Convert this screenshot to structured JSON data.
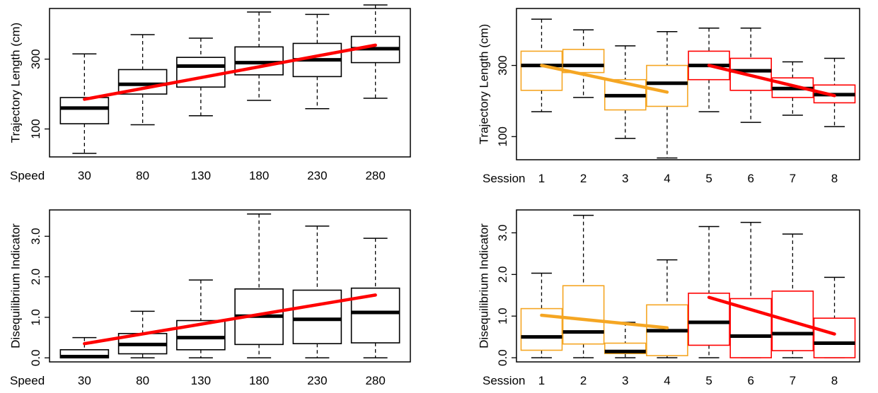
{
  "chart_data": [
    {
      "type": "box",
      "ylabel": "Trajectory Length (cm)",
      "xname": "Speed",
      "categories": [
        "30",
        "80",
        "130",
        "180",
        "230",
        "280"
      ],
      "ylim": [
        20,
        445
      ],
      "yticks": [
        100,
        300
      ],
      "boxes": [
        {
          "min": 30,
          "q1": 115,
          "median": 160,
          "q3": 190,
          "max": 315
        },
        {
          "min": 112,
          "q1": 200,
          "median": 228,
          "q3": 270,
          "max": 370
        },
        {
          "min": 138,
          "q1": 220,
          "median": 280,
          "q3": 305,
          "max": 360
        },
        {
          "min": 182,
          "q1": 255,
          "median": 290,
          "q3": 335,
          "max": 435
        },
        {
          "min": 158,
          "q1": 250,
          "median": 298,
          "q3": 345,
          "max": 428
        },
        {
          "min": 188,
          "q1": 290,
          "median": 330,
          "q3": 365,
          "max": 455
        }
      ],
      "box_colors": [
        "#000000",
        "#000000",
        "#000000",
        "#000000",
        "#000000",
        "#000000"
      ],
      "trend_lines": [
        {
          "x_start": 1,
          "x_end": 6,
          "y_start": 185,
          "y_end": 340,
          "color": "#ff0000"
        }
      ]
    },
    {
      "type": "box",
      "ylabel": "Trajectory Length (cm)",
      "xname": "Session",
      "categories": [
        "1",
        "2",
        "3",
        "4",
        "5",
        "6",
        "7",
        "8"
      ],
      "ylim": [
        35,
        460
      ],
      "yticks": [
        100,
        300
      ],
      "boxes": [
        {
          "min": 170,
          "q1": 230,
          "median": 300,
          "q3": 340,
          "max": 430
        },
        {
          "min": 210,
          "q1": 280,
          "median": 300,
          "q3": 345,
          "max": 400
        },
        {
          "min": 95,
          "q1": 175,
          "median": 215,
          "q3": 260,
          "max": 355
        },
        {
          "min": 40,
          "q1": 185,
          "median": 250,
          "q3": 300,
          "max": 395
        },
        {
          "min": 170,
          "q1": 260,
          "median": 300,
          "q3": 340,
          "max": 405
        },
        {
          "min": 140,
          "q1": 230,
          "median": 285,
          "q3": 320,
          "max": 405
        },
        {
          "min": 160,
          "q1": 210,
          "median": 235,
          "q3": 265,
          "max": 310
        },
        {
          "min": 128,
          "q1": 195,
          "median": 218,
          "q3": 245,
          "max": 320
        }
      ],
      "box_colors": [
        "#f5a623",
        "#f5a623",
        "#f5a623",
        "#f5a623",
        "#ff0000",
        "#ff0000",
        "#ff0000",
        "#ff0000"
      ],
      "trend_lines": [
        {
          "x_start": 1,
          "x_end": 4,
          "y_start": 300,
          "y_end": 225,
          "color": "#f5a623"
        },
        {
          "x_start": 5,
          "x_end": 8,
          "y_start": 300,
          "y_end": 215,
          "color": "#ff0000"
        }
      ]
    },
    {
      "type": "box",
      "ylabel": "Disequilibrium Indicator",
      "xname": "Speed",
      "categories": [
        "30",
        "80",
        "130",
        "180",
        "230",
        "280"
      ],
      "ylim": [
        -0.1,
        3.65
      ],
      "yticks": [
        0.0,
        1.0,
        2.0,
        3.0
      ],
      "ytick_labels": [
        "0.0",
        "1.0",
        "2.0",
        "3.0"
      ],
      "boxes": [
        {
          "min": 0.0,
          "q1": 0.0,
          "median": 0.03,
          "q3": 0.2,
          "max": 0.5
        },
        {
          "min": 0.0,
          "q1": 0.1,
          "median": 0.33,
          "q3": 0.6,
          "max": 1.15
        },
        {
          "min": 0.0,
          "q1": 0.2,
          "median": 0.5,
          "q3": 0.92,
          "max": 1.92
        },
        {
          "min": 0.0,
          "q1": 0.33,
          "median": 1.03,
          "q3": 1.7,
          "max": 3.55
        },
        {
          "min": 0.0,
          "q1": 0.35,
          "median": 0.95,
          "q3": 1.67,
          "max": 3.25
        },
        {
          "min": 0.0,
          "q1": 0.37,
          "median": 1.12,
          "q3": 1.72,
          "max": 2.95
        }
      ],
      "box_colors": [
        "#000000",
        "#000000",
        "#000000",
        "#000000",
        "#000000",
        "#000000"
      ],
      "trend_lines": [
        {
          "x_start": 1,
          "x_end": 6,
          "y_start": 0.35,
          "y_end": 1.55,
          "color": "#ff0000"
        }
      ]
    },
    {
      "type": "box",
      "ylabel": "Disequilibrium Indicator",
      "xname": "Session",
      "categories": [
        "1",
        "2",
        "3",
        "4",
        "5",
        "6",
        "7",
        "8"
      ],
      "ylim": [
        -0.1,
        3.55
      ],
      "yticks": [
        0.0,
        1.0,
        2.0,
        3.0
      ],
      "ytick_labels": [
        "0.0",
        "1.0",
        "2.0",
        "3.0"
      ],
      "boxes": [
        {
          "min": 0.0,
          "q1": 0.18,
          "median": 0.5,
          "q3": 1.18,
          "max": 2.03
        },
        {
          "min": 0.0,
          "q1": 0.33,
          "median": 0.62,
          "q3": 1.73,
          "max": 3.42
        },
        {
          "min": 0.0,
          "q1": 0.1,
          "median": 0.15,
          "q3": 0.35,
          "max": 0.85
        },
        {
          "min": 0.0,
          "q1": 0.05,
          "median": 0.65,
          "q3": 1.27,
          "max": 2.35
        },
        {
          "min": 0.0,
          "q1": 0.3,
          "median": 0.85,
          "q3": 1.55,
          "max": 3.15
        },
        {
          "min": 0.0,
          "q1": 0.0,
          "median": 0.52,
          "q3": 1.42,
          "max": 3.25
        },
        {
          "min": 0.0,
          "q1": 0.17,
          "median": 0.58,
          "q3": 1.6,
          "max": 2.97
        },
        {
          "min": 0.0,
          "q1": 0.0,
          "median": 0.35,
          "q3": 0.95,
          "max": 1.93
        }
      ],
      "box_colors": [
        "#f5a623",
        "#f5a623",
        "#f5a623",
        "#f5a623",
        "#ff0000",
        "#ff0000",
        "#ff0000",
        "#ff0000"
      ],
      "trend_lines": [
        {
          "x_start": 1,
          "x_end": 4,
          "y_start": 1.02,
          "y_end": 0.72,
          "color": "#f5a623"
        },
        {
          "x_start": 5,
          "x_end": 8,
          "y_start": 1.45,
          "y_end": 0.57,
          "color": "#ff0000"
        }
      ]
    }
  ]
}
